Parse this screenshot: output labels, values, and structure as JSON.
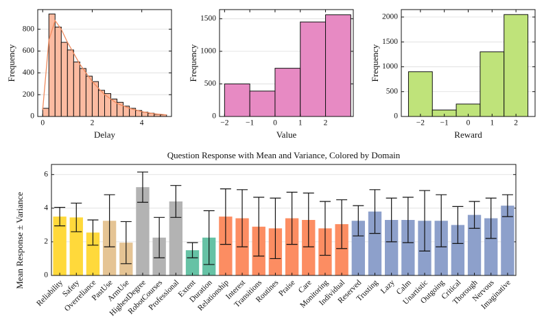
{
  "chart_data": [
    {
      "type": "histogram",
      "xlabel": "Delay",
      "ylabel": "Frequency",
      "bins": [
        0,
        0.25,
        0.5,
        0.75,
        1,
        1.25,
        1.5,
        1.75,
        2,
        2.25,
        2.5,
        2.75,
        3,
        3.25,
        3.5,
        3.75,
        4,
        4.25,
        4.5,
        4.75,
        5
      ],
      "values": [
        75,
        940,
        820,
        680,
        610,
        500,
        440,
        370,
        320,
        240,
        210,
        160,
        130,
        95,
        75,
        55,
        40,
        30,
        20,
        15
      ],
      "color": "#fcbba1",
      "kde": {
        "x": [
          0,
          0.25,
          0.5,
          0.75,
          1,
          1.5,
          2,
          2.5,
          3,
          3.5,
          4,
          4.5,
          5
        ],
        "values": [
          60,
          700,
          880,
          800,
          680,
          480,
          320,
          200,
          120,
          75,
          45,
          25,
          15
        ],
        "color": "#f08a5d"
      },
      "xlim": [
        -0.2,
        5.2
      ],
      "ylim": [
        0,
        980
      ],
      "xticks": [
        0,
        2,
        4
      ],
      "yticks": [
        0,
        200,
        400,
        600,
        800
      ],
      "grid": true
    },
    {
      "type": "histogram",
      "xlabel": "Value",
      "ylabel": "Frequency",
      "bins": [
        -2,
        -1,
        0,
        1,
        2,
        3
      ],
      "values": [
        500,
        390,
        740,
        1450,
        1560
      ],
      "color": "#e78ac3",
      "xlim": [
        -2.2,
        3.1
      ],
      "ylim": [
        0,
        1640
      ],
      "xticks": [
        {
          "value": -2,
          "label": "−2"
        },
        {
          "value": -1,
          "label": "−1"
        },
        0,
        1,
        2
      ],
      "yticks": [
        0,
        500,
        1000,
        1500
      ],
      "grid": true
    },
    {
      "type": "histogram",
      "xlabel": "Reward",
      "ylabel": "Frequency",
      "bins": [
        -2.5,
        -1.5,
        -0.5,
        0.5,
        1.5,
        2.5
      ],
      "values": [
        900,
        130,
        250,
        1300,
        2050
      ],
      "color": "#bfe37a",
      "xlim": [
        -2.8,
        2.8
      ],
      "ylim": [
        0,
        2150
      ],
      "xticks": [
        {
          "value": -2,
          "label": "−2"
        },
        {
          "value": -1,
          "label": "−1"
        },
        0,
        1,
        2
      ],
      "yticks": [
        0,
        500,
        1000,
        1500,
        2000
      ],
      "grid": true
    },
    {
      "type": "bar",
      "title": "Question Response with Mean and Variance, Colored by Domain",
      "ylabel": "Mean Response ± Variance",
      "categories": [
        "Reliability",
        "Safety",
        "Overreliance",
        "PastUse",
        "ArmUse",
        "HighestDegree",
        "RobotCourses",
        "Professional",
        "Extent",
        "Duration",
        "Relationship",
        "Interest",
        "Transitions",
        "Routines",
        "Praise",
        "Care",
        "Monitoring",
        "Individual",
        "Reserved",
        "Trusting",
        "Lazy",
        "Calm",
        "Unartistic",
        "Outgoing",
        "Critical",
        "Thorough",
        "Nervous",
        "Imaginative"
      ],
      "values": [
        3.5,
        3.45,
        2.55,
        3.25,
        1.95,
        5.25,
        2.25,
        4.4,
        1.5,
        2.25,
        3.5,
        3.4,
        2.9,
        2.8,
        3.4,
        3.3,
        2.8,
        3.05,
        3.25,
        3.8,
        3.3,
        3.3,
        3.25,
        3.25,
        3.0,
        3.6,
        3.4,
        4.15
      ],
      "errors": [
        0.55,
        0.85,
        0.75,
        1.55,
        1.25,
        0.9,
        1.2,
        0.95,
        0.45,
        1.6,
        1.65,
        1.7,
        1.75,
        1.8,
        1.55,
        1.6,
        1.6,
        1.45,
        0.9,
        1.3,
        1.3,
        1.35,
        1.8,
        1.55,
        1.1,
        0.8,
        1.2,
        0.65
      ],
      "colors": [
        "#ffd93b",
        "#ffd93b",
        "#ffd93b",
        "#e5c494",
        "#e5c494",
        "#b3b3b3",
        "#b3b3b3",
        "#b3b3b3",
        "#66c2a5",
        "#66c2a5",
        "#fc8d62",
        "#fc8d62",
        "#fc8d62",
        "#fc8d62",
        "#fc8d62",
        "#fc8d62",
        "#fc8d62",
        "#fc8d62",
        "#8da0cb",
        "#8da0cb",
        "#8da0cb",
        "#8da0cb",
        "#8da0cb",
        "#8da0cb",
        "#8da0cb",
        "#8da0cb",
        "#8da0cb",
        "#8da0cb"
      ],
      "ylim": [
        0,
        6.6
      ],
      "yticks": [
        0,
        2,
        4,
        6
      ],
      "grid": true
    }
  ]
}
